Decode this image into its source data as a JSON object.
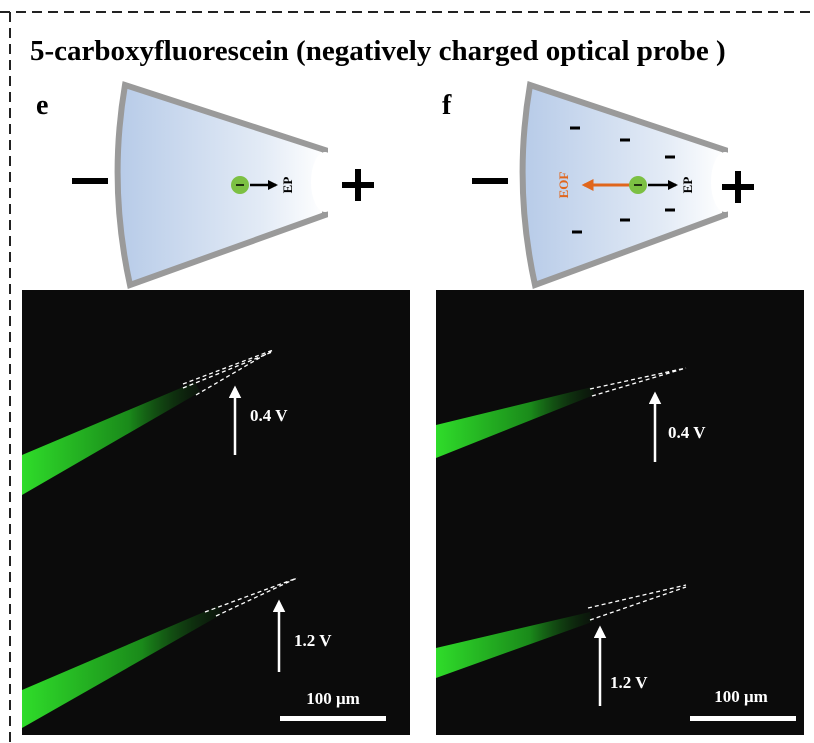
{
  "title": "5-carboxyfluorescein (negatively charged optical probe )",
  "panels": [
    {
      "label": "e",
      "arrows": [
        "EP"
      ],
      "images": [
        {
          "voltage": "0.4 V"
        },
        {
          "voltage": "1.2 V"
        }
      ],
      "scale_bar": "100 μm"
    },
    {
      "label": "f",
      "arrows": [
        "EP",
        "EOF"
      ],
      "images": [
        {
          "voltage": "0.4 V"
        },
        {
          "voltage": "1.2 V"
        }
      ],
      "scale_bar": "100 μm"
    }
  ]
}
